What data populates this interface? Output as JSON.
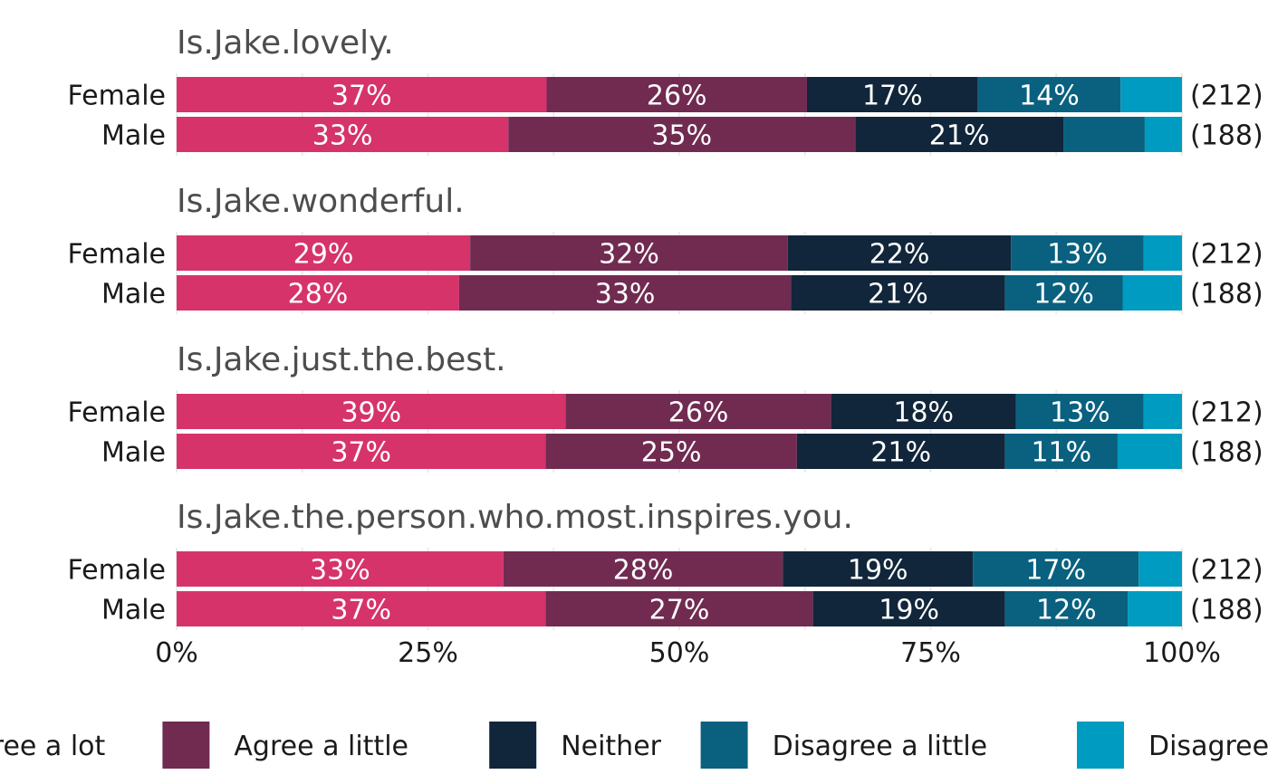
{
  "chart_data": {
    "type": "bar",
    "orientation": "horizontal-stacked-100",
    "xlim": [
      0,
      100
    ],
    "x_ticks": [
      {
        "value": 0,
        "label": "0%"
      },
      {
        "value": 25,
        "label": "25%"
      },
      {
        "value": 50,
        "label": "50%"
      },
      {
        "value": 75,
        "label": "75%"
      },
      {
        "value": 100,
        "label": "100%"
      }
    ],
    "grid": true,
    "legend_position": "bottom",
    "series": [
      {
        "name": "Agree a lot",
        "color": "#d6336b"
      },
      {
        "name": "Agree a little",
        "color": "#712b51"
      },
      {
        "name": "Neither",
        "color": "#11263b"
      },
      {
        "name": "Disagree a little",
        "color": "#09617f"
      },
      {
        "name": "Disagree a lot",
        "color": "#009bc0"
      }
    ],
    "panels": [
      {
        "title": "Is.Jake.lovely.",
        "rows": [
          {
            "group": "Female",
            "count": "(212)",
            "values": [
              36.8,
              25.9,
              17.0,
              14.2,
              6.1
            ],
            "labels": [
              "37%",
              "26%",
              "17%",
              "14%",
              ""
            ]
          },
          {
            "group": "Male",
            "count": "(188)",
            "values": [
              33.0,
              34.5,
              20.7,
              8.1,
              3.7
            ],
            "labels": [
              "33%",
              "35%",
              "21%",
              "",
              ""
            ]
          }
        ]
      },
      {
        "title": "Is.Jake.wonderful.",
        "rows": [
          {
            "group": "Female",
            "count": "(212)",
            "values": [
              29.2,
              31.6,
              22.2,
              13.2,
              3.8
            ],
            "labels": [
              "29%",
              "32%",
              "22%",
              "13%",
              ""
            ]
          },
          {
            "group": "Male",
            "count": "(188)",
            "values": [
              28.1,
              33.0,
              21.3,
              11.7,
              5.9
            ],
            "labels": [
              "28%",
              "33%",
              "21%",
              "12%",
              ""
            ]
          }
        ]
      },
      {
        "title": "Is.Jake.just.the.best.",
        "rows": [
          {
            "group": "Female",
            "count": "(212)",
            "values": [
              38.7,
              26.4,
              18.4,
              12.7,
              3.8
            ],
            "labels": [
              "39%",
              "26%",
              "18%",
              "13%",
              ""
            ]
          },
          {
            "group": "Male",
            "count": "(188)",
            "values": [
              36.7,
              25.0,
              20.7,
              11.2,
              6.4
            ],
            "labels": [
              "37%",
              "25%",
              "21%",
              "11%",
              ""
            ]
          }
        ]
      },
      {
        "title": "Is.Jake.the.person.who.most.inspires.you.",
        "rows": [
          {
            "group": "Female",
            "count": "(212)",
            "values": [
              32.5,
              27.8,
              18.9,
              16.5,
              4.3
            ],
            "labels": [
              "33%",
              "28%",
              "19%",
              "17%",
              ""
            ]
          },
          {
            "group": "Male",
            "count": "(188)",
            "values": [
              36.7,
              26.6,
              19.1,
              12.2,
              5.4
            ],
            "labels": [
              "37%",
              "27%",
              "19%",
              "12%",
              ""
            ]
          }
        ]
      }
    ]
  }
}
